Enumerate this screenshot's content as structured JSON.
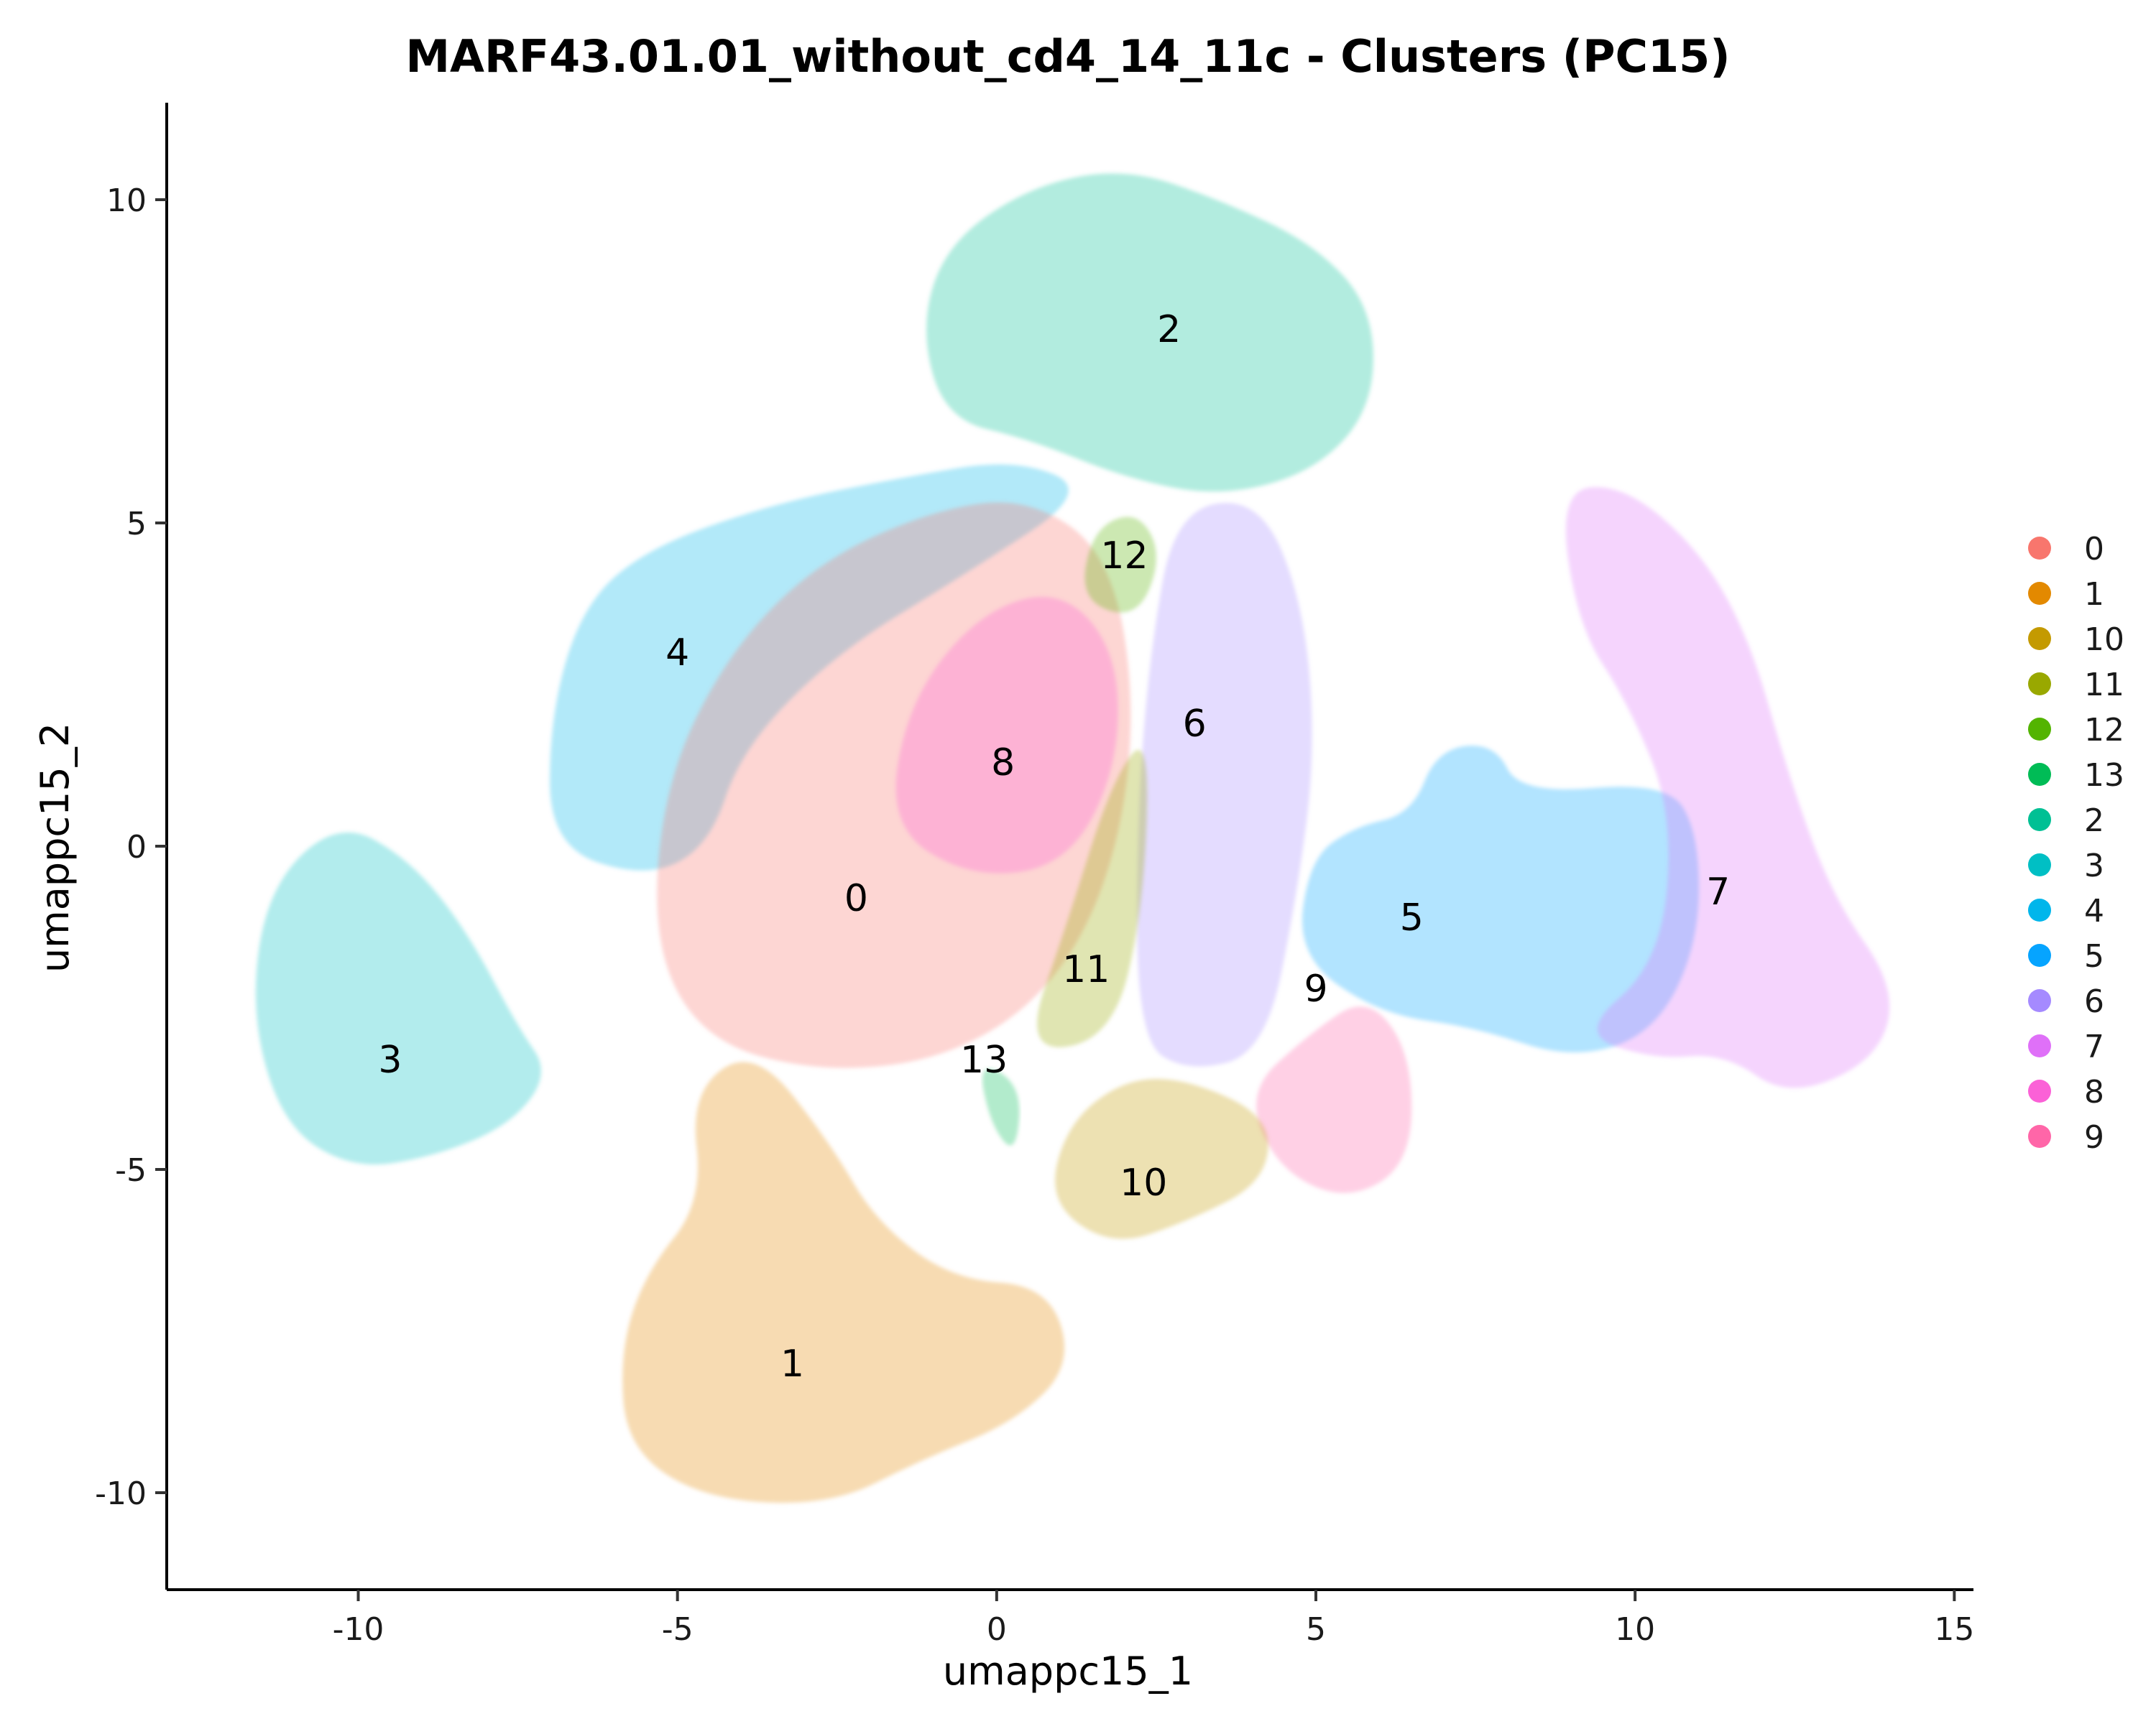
{
  "chart_data": {
    "type": "scatter",
    "title": "MARF43.01.01_without_cd4_14_11c - Clusters (PC15)",
    "xlabel": "umappc15_1",
    "ylabel": "umappc15_2",
    "xlim": [
      -13,
      15.3
    ],
    "ylim": [
      -11.5,
      11.5
    ],
    "xticks": [
      -10,
      -5,
      0,
      5,
      10,
      15
    ],
    "xtick_labels": [
      "-10",
      "-5",
      "0",
      "5",
      "10",
      "15"
    ],
    "yticks": [
      -10,
      -5,
      0,
      5,
      10
    ],
    "ytick_labels": [
      "-10",
      "-5",
      "0",
      "5",
      "10"
    ],
    "grid": false,
    "legend_position": "right",
    "legend": [
      {
        "label": "0",
        "color": "#F8766D"
      },
      {
        "label": "1",
        "color": "#E38900"
      },
      {
        "label": "10",
        "color": "#C49A00"
      },
      {
        "label": "11",
        "color": "#99A800"
      },
      {
        "label": "12",
        "color": "#53B400"
      },
      {
        "label": "13",
        "color": "#00BC56"
      },
      {
        "label": "2",
        "color": "#00C094"
      },
      {
        "label": "3",
        "color": "#00BFC4"
      },
      {
        "label": "4",
        "color": "#00B6EB"
      },
      {
        "label": "5",
        "color": "#06A4FF"
      },
      {
        "label": "6",
        "color": "#A58AFF"
      },
      {
        "label": "7",
        "color": "#DF70F8"
      },
      {
        "label": "8",
        "color": "#FB61D7"
      },
      {
        "label": "9",
        "color": "#FF66A8"
      }
    ],
    "clusters": [
      {
        "name": "4",
        "label_pos": [
          -5.0,
          3.0
        ],
        "color": "#00B6EB",
        "outline": [
          [
            -7,
            0
          ],
          [
            -7,
            2
          ],
          [
            -6.5,
            3.7
          ],
          [
            -5.5,
            4.6
          ],
          [
            -3.5,
            5.3
          ],
          [
            -1.5,
            5.7
          ],
          [
            0.3,
            6
          ],
          [
            1.5,
            5.5
          ],
          [
            -0.5,
            4.2
          ],
          [
            -2.5,
            3
          ],
          [
            -4,
            1.5
          ],
          [
            -4.5,
            0
          ],
          [
            -5.5,
            -0.5
          ]
        ]
      },
      {
        "name": "2",
        "label_pos": [
          2.7,
          8.0
        ],
        "color": "#00C094",
        "outline": [
          [
            -1.2,
            8
          ],
          [
            -0.8,
            9.3
          ],
          [
            0.5,
            10.2
          ],
          [
            2,
            10.5
          ],
          [
            3.5,
            10
          ],
          [
            5,
            9.3
          ],
          [
            5.9,
            8.3
          ],
          [
            5.9,
            6.8
          ],
          [
            5,
            5.8
          ],
          [
            3.5,
            5.4
          ],
          [
            2,
            5.7
          ],
          [
            0.5,
            6.3
          ],
          [
            -0.8,
            6.6
          ]
        ]
      },
      {
        "name": "0",
        "label_pos": [
          -2.2,
          -0.8
        ],
        "color": "#F8766D",
        "outline": [
          [
            -5.4,
            -1.5
          ],
          [
            -5.2,
            1
          ],
          [
            -4.2,
            3
          ],
          [
            -2.8,
            4.4
          ],
          [
            -1,
            5.2
          ],
          [
            0.5,
            5.4
          ],
          [
            1.8,
            4.5
          ],
          [
            2.2,
            2
          ],
          [
            1.8,
            -0.5
          ],
          [
            0.8,
            -2.3
          ],
          [
            -0.8,
            -3.3
          ],
          [
            -2.8,
            -3.5
          ],
          [
            -4.6,
            -3
          ]
        ]
      },
      {
        "name": "8",
        "label_pos": [
          0.1,
          1.3
        ],
        "color": "#FB61D7",
        "outline": [
          [
            -1.7,
            0.3
          ],
          [
            -1.4,
            2.2
          ],
          [
            -0.3,
            3.6
          ],
          [
            1,
            4
          ],
          [
            1.9,
            3
          ],
          [
            1.9,
            1.2
          ],
          [
            1.1,
            -0.3
          ],
          [
            -0.4,
            -0.5
          ]
        ]
      },
      {
        "name": "12",
        "label_pos": [
          2.0,
          4.5
        ],
        "color": "#53B400",
        "outline": [
          [
            1.3,
            3.8
          ],
          [
            1.5,
            4.9
          ],
          [
            2.2,
            5.2
          ],
          [
            2.6,
            4.5
          ],
          [
            2.2,
            3.5
          ]
        ]
      },
      {
        "name": "6",
        "label_pos": [
          3.1,
          1.9
        ],
        "color": "#A58AFF",
        "outline": [
          [
            2.2,
            -3
          ],
          [
            2.2,
            0.5
          ],
          [
            2.4,
            3
          ],
          [
            2.8,
            5.2
          ],
          [
            4.1,
            5.4
          ],
          [
            4.8,
            3.8
          ],
          [
            5,
            1.5
          ],
          [
            4.7,
            -0.8
          ],
          [
            4.2,
            -3.2
          ],
          [
            3,
            -3.5
          ]
        ]
      },
      {
        "name": "11",
        "label_pos": [
          1.4,
          -1.9
        ],
        "color": "#99A800",
        "outline": [
          [
            0.4,
            -3.2
          ],
          [
            1.1,
            -1.2
          ],
          [
            1.8,
            1
          ],
          [
            2.4,
            1.8
          ],
          [
            2.3,
            -1
          ],
          [
            1.8,
            -3
          ]
        ]
      },
      {
        "name": "13",
        "label_pos": [
          -0.2,
          -3.3
        ],
        "color": "#00BC56",
        "outline": [
          [
            -0.3,
            -3.3
          ],
          [
            0.4,
            -3.7
          ],
          [
            0.3,
            -4.8
          ],
          [
            -0.1,
            -4.3
          ]
        ]
      },
      {
        "name": "9",
        "label_pos": [
          5.0,
          -2.2
        ],
        "color": "#FF66A8",
        "outline": [
          [
            3.9,
            -3.8
          ],
          [
            4.4,
            -5
          ],
          [
            5.5,
            -5.5
          ],
          [
            6.5,
            -4.9
          ],
          [
            6.5,
            -3.2
          ],
          [
            5.8,
            -2.3
          ],
          [
            4.9,
            -2.9
          ]
        ]
      },
      {
        "name": "10",
        "label_pos": [
          2.3,
          -5.2
        ],
        "color": "#C49A00",
        "outline": [
          [
            0.8,
            -5.5
          ],
          [
            1.1,
            -4.3
          ],
          [
            2,
            -3.6
          ],
          [
            3,
            -3.6
          ],
          [
            4.3,
            -4.2
          ],
          [
            4.2,
            -5.2
          ],
          [
            3,
            -5.8
          ],
          [
            1.8,
            -6.2
          ]
        ]
      },
      {
        "name": "1",
        "label_pos": [
          -3.2,
          -8.0
        ],
        "color": "#E38900",
        "outline": [
          [
            -5.9,
            -7.8
          ],
          [
            -5.5,
            -6.6
          ],
          [
            -4.6,
            -5.5
          ],
          [
            -4.8,
            -3.8
          ],
          [
            -3.8,
            -3.1
          ],
          [
            -2.6,
            -4.6
          ],
          [
            -1.9,
            -5.8
          ],
          [
            -0.7,
            -6.7
          ],
          [
            0.8,
            -6.8
          ],
          [
            1.2,
            -8
          ],
          [
            0.3,
            -8.9
          ],
          [
            -1.2,
            -9.5
          ],
          [
            -2.6,
            -10.2
          ],
          [
            -4.6,
            -10.1
          ],
          [
            -5.8,
            -9.3
          ]
        ]
      },
      {
        "name": "3",
        "label_pos": [
          -9.5,
          -3.3
        ],
        "color": "#00BFC4",
        "outline": [
          [
            -11.7,
            -2.5
          ],
          [
            -11.4,
            -0.6
          ],
          [
            -10.3,
            0.4
          ],
          [
            -9.2,
            -0.2
          ],
          [
            -8.3,
            -1.3
          ],
          [
            -7.5,
            -2.8
          ],
          [
            -7,
            -3.5
          ],
          [
            -7.6,
            -4.3
          ],
          [
            -8.8,
            -4.8
          ],
          [
            -10.1,
            -5
          ],
          [
            -11.2,
            -4.3
          ]
        ]
      },
      {
        "name": "5",
        "label_pos": [
          6.5,
          -1.1
        ],
        "color": "#06A4FF",
        "outline": [
          [
            4.7,
            -1.7
          ],
          [
            4.9,
            -0.2
          ],
          [
            5.6,
            0.3
          ],
          [
            6.5,
            0.5
          ],
          [
            6.9,
            1.5
          ],
          [
            7.8,
            1.6
          ],
          [
            8.2,
            0.8
          ],
          [
            10.5,
            1
          ],
          [
            11,
            0.2
          ],
          [
            11,
            -1.5
          ],
          [
            10.3,
            -2.9
          ],
          [
            9,
            -3.3
          ],
          [
            7.5,
            -2.8
          ],
          [
            6,
            -2.6
          ]
        ]
      },
      {
        "name": "7",
        "label_pos": [
          11.3,
          -0.7
        ],
        "color": "#DF70F8",
        "outline": [
          [
            9.1,
            -2.9
          ],
          [
            10.4,
            -1.8
          ],
          [
            10.6,
            0.5
          ],
          [
            9.9,
            2.2
          ],
          [
            9.1,
            3.4
          ],
          [
            8.8,
            5.5
          ],
          [
            9.8,
            5.6
          ],
          [
            11,
            4.6
          ],
          [
            11.8,
            3.2
          ],
          [
            12.4,
            1.1
          ],
          [
            13.1,
            -0.8
          ],
          [
            14.1,
            -2.2
          ],
          [
            13.8,
            -3.3
          ],
          [
            12.4,
            -3.9
          ],
          [
            11.4,
            -3.2
          ],
          [
            10.3,
            -3.3
          ]
        ]
      }
    ]
  }
}
